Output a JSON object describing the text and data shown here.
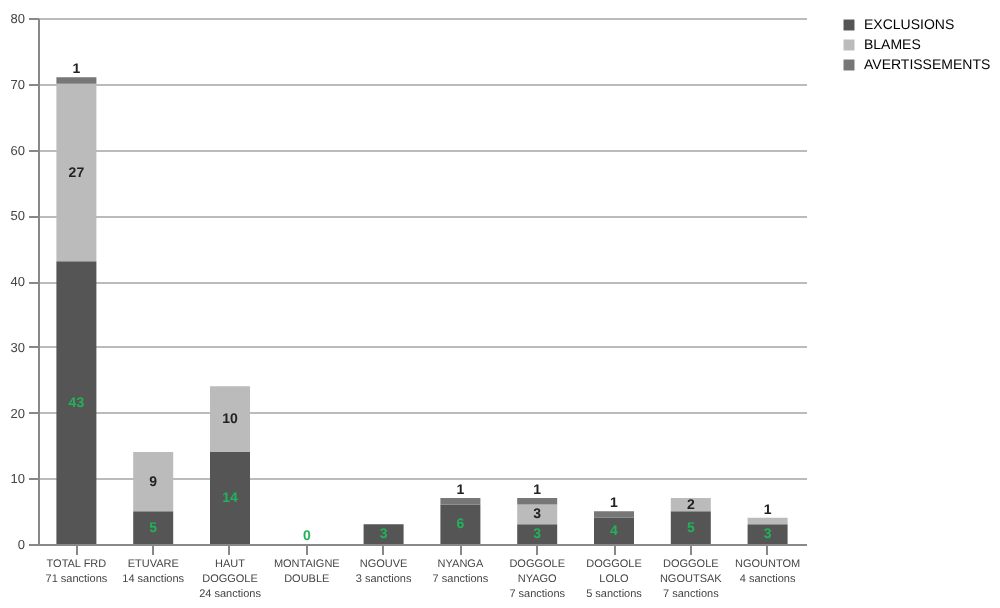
{
  "chart_data": {
    "type": "bar",
    "stacked": true,
    "categories": [
      "TOTAL FRD\n71 sanctions",
      "ETUVARE\n14 sanctions",
      "HAUT\nDOGGOLE\n24 sanctions",
      "MONTAIGNE\nDOUBLE",
      "NGOUVE\n3 sanctions",
      "NYANGA\n7 sanctions",
      "DOGGOLE\nNYAGO\n7 sanctions",
      "DOGGOLE\nLOLO\n5 sanctions",
      "DOGGOLE\nNGOUTSAK\n7 sanctions",
      "NGOUNTOM\n4 sanctions"
    ],
    "series": [
      {
        "name": "EXCLUSIONS",
        "color": "#555555",
        "values": [
          43,
          5,
          14,
          0,
          3,
          6,
          3,
          4,
          5,
          3
        ],
        "value_labels": [
          "43",
          "5",
          "14",
          "0",
          "3",
          "6",
          "3",
          "4",
          "5",
          "3"
        ]
      },
      {
        "name": "BLAMES",
        "color": "#bbbbbb",
        "values": [
          27,
          9,
          10,
          0,
          0,
          0,
          3,
          0,
          2,
          1
        ],
        "value_labels": [
          "27",
          "9",
          "10",
          null,
          null,
          null,
          "3",
          null,
          "2",
          "1"
        ]
      },
      {
        "name": "AVERTISSEMENTS",
        "color": "#777777",
        "values": [
          1,
          0,
          0,
          0,
          0,
          1,
          1,
          1,
          0,
          0
        ],
        "value_labels": [
          "1",
          null,
          null,
          null,
          null,
          "1",
          "1",
          "1",
          null,
          null
        ]
      }
    ],
    "ylim": [
      0,
      80
    ],
    "yticks": [
      0,
      10,
      20,
      30,
      40,
      50,
      60,
      70,
      80
    ],
    "grid": "y",
    "legend": "right"
  }
}
